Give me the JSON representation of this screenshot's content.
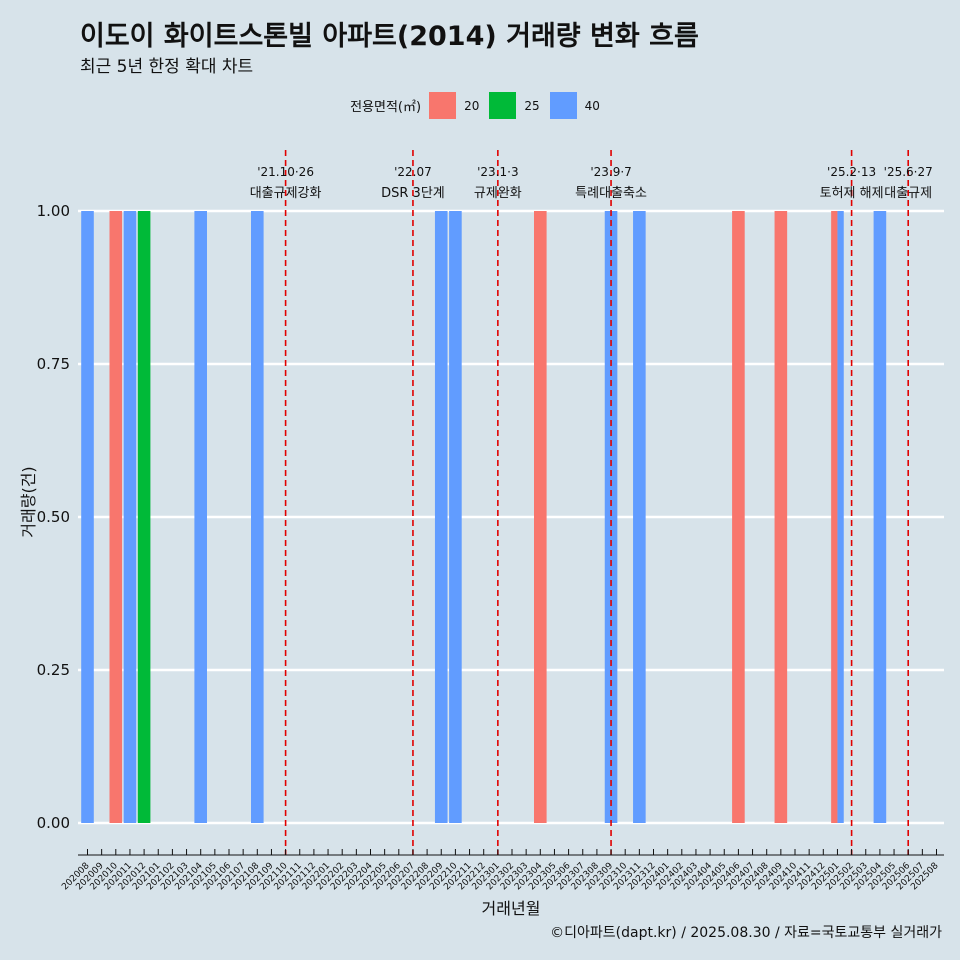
{
  "title": "이도이 화이트스톤빌 아파트(2014) 거래량 변화 흐름",
  "subtitle": "최근 5년 한정 확대 차트",
  "caption": "©디아파트(dapt.kr) / 2025.08.30 / 자료=국토교통부 실거래가",
  "legend": {
    "title": "전용면적(㎡)",
    "items": [
      {
        "label": "20",
        "color": "#f8766d"
      },
      {
        "label": "25",
        "color": "#00ba38"
      },
      {
        "label": "40",
        "color": "#619cff"
      }
    ]
  },
  "chart_data": {
    "type": "bar",
    "xlabel": "거래년월",
    "ylabel": "거래량(건)",
    "ylim": [
      0,
      1
    ],
    "yticks": [
      "0.00",
      "0.25",
      "0.50",
      "0.75",
      "1.00"
    ],
    "grid": true,
    "legend_position": "top",
    "categories": [
      "202008",
      "202009",
      "202010",
      "202011",
      "202012",
      "202101",
      "202102",
      "202103",
      "202104",
      "202105",
      "202106",
      "202107",
      "202108",
      "202109",
      "202110",
      "202111",
      "202112",
      "202201",
      "202202",
      "202203",
      "202204",
      "202205",
      "202206",
      "202207",
      "202208",
      "202209",
      "202210",
      "202211",
      "202212",
      "202301",
      "202302",
      "202303",
      "202304",
      "202305",
      "202306",
      "202307",
      "202308",
      "202309",
      "202310",
      "202311",
      "202312",
      "202401",
      "202402",
      "202403",
      "202404",
      "202405",
      "202406",
      "202407",
      "202408",
      "202409",
      "202410",
      "202411",
      "202412",
      "202501",
      "202502",
      "202503",
      "202504",
      "202505",
      "202506",
      "202507",
      "202508"
    ],
    "bars": [
      {
        "x": "202008",
        "series": "40",
        "value": 1
      },
      {
        "x": "202010",
        "series": "20",
        "value": 1
      },
      {
        "x": "202011",
        "series": "40",
        "value": 1
      },
      {
        "x": "202012",
        "series": "25",
        "value": 1
      },
      {
        "x": "202104",
        "series": "40",
        "value": 1
      },
      {
        "x": "202108",
        "series": "40",
        "value": 1
      },
      {
        "x": "202209",
        "series": "40",
        "value": 1
      },
      {
        "x": "202210",
        "series": "40",
        "value": 1
      },
      {
        "x": "202304",
        "series": "20",
        "value": 1
      },
      {
        "x": "202309",
        "series": "40",
        "value": 1
      },
      {
        "x": "202311",
        "series": "40",
        "value": 1
      },
      {
        "x": "202406",
        "series": "20",
        "value": 1
      },
      {
        "x": "202409",
        "series": "20",
        "value": 1
      },
      {
        "x": "202501",
        "series": "20",
        "value": 1
      },
      {
        "x": "202501",
        "series": "40",
        "value": 1
      },
      {
        "x": "202504",
        "series": "40",
        "value": 1
      }
    ],
    "annotations": [
      {
        "x": "202110",
        "date": "'21.10·26",
        "label": "대출규제강화"
      },
      {
        "x": "202207",
        "date": "'22.07",
        "label": "DSR 3단계"
      },
      {
        "x": "202301",
        "date": "'23.1·3",
        "label": "규제완화"
      },
      {
        "x": "202309",
        "date": "'23.9·7",
        "label": "특례대출축소"
      },
      {
        "x": "202502",
        "date": "'25.2·13",
        "label": "토허제 해제"
      },
      {
        "x": "202506",
        "date": "'25.6·27",
        "label": "대출규제"
      }
    ]
  }
}
